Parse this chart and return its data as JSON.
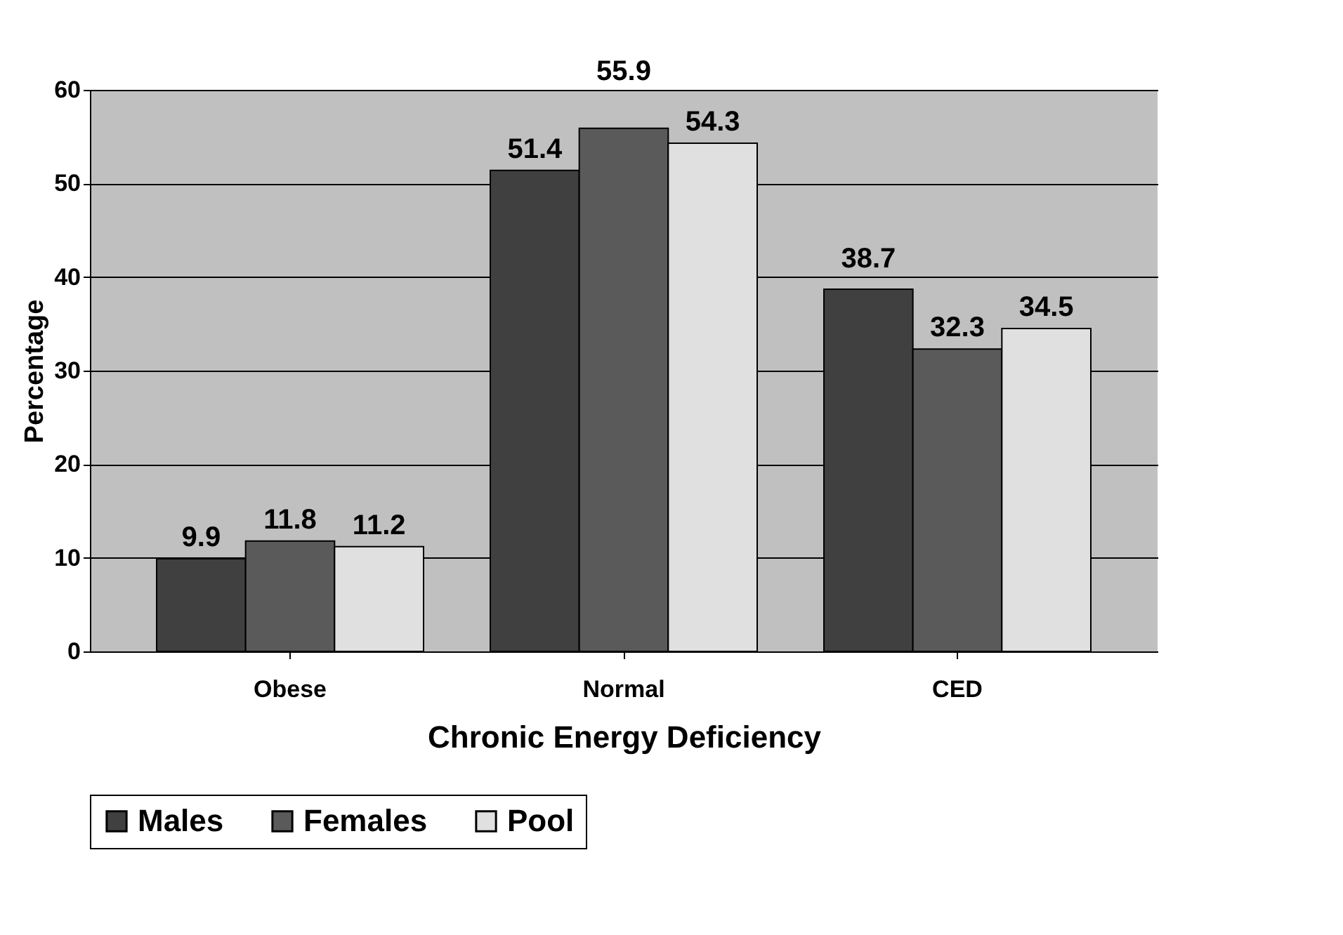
{
  "chart_data": {
    "type": "bar",
    "xlabel": "Chronic Energy Deficiency",
    "ylabel": "Percentage",
    "categories": [
      "Obese",
      "Normal",
      "CED"
    ],
    "series": [
      {
        "name": "Males",
        "color": "#404040",
        "values": [
          9.9,
          51.4,
          38.7
        ]
      },
      {
        "name": "Females",
        "color": "#5a5a5a",
        "values": [
          11.8,
          55.9,
          32.3
        ]
      },
      {
        "name": "Pool",
        "color": "#e0e0e0",
        "values": [
          11.2,
          54.3,
          34.5
        ]
      }
    ],
    "ylim": [
      0,
      60
    ],
    "yticks": [
      0,
      10,
      20,
      30,
      40,
      50,
      60
    ],
    "grid": "y",
    "legend": "bottom",
    "data_labels": true
  }
}
